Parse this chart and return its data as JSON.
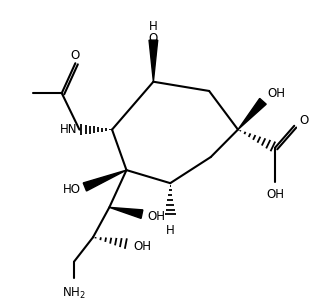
{
  "background": "#ffffff",
  "line_color": "#000000",
  "line_width": 1.5,
  "font_size": 8.5,
  "figsize": [
    3.22,
    3.02
  ],
  "dpi": 100,
  "xlim": [
    0,
    10
  ],
  "ylim": [
    0,
    10.5
  ]
}
